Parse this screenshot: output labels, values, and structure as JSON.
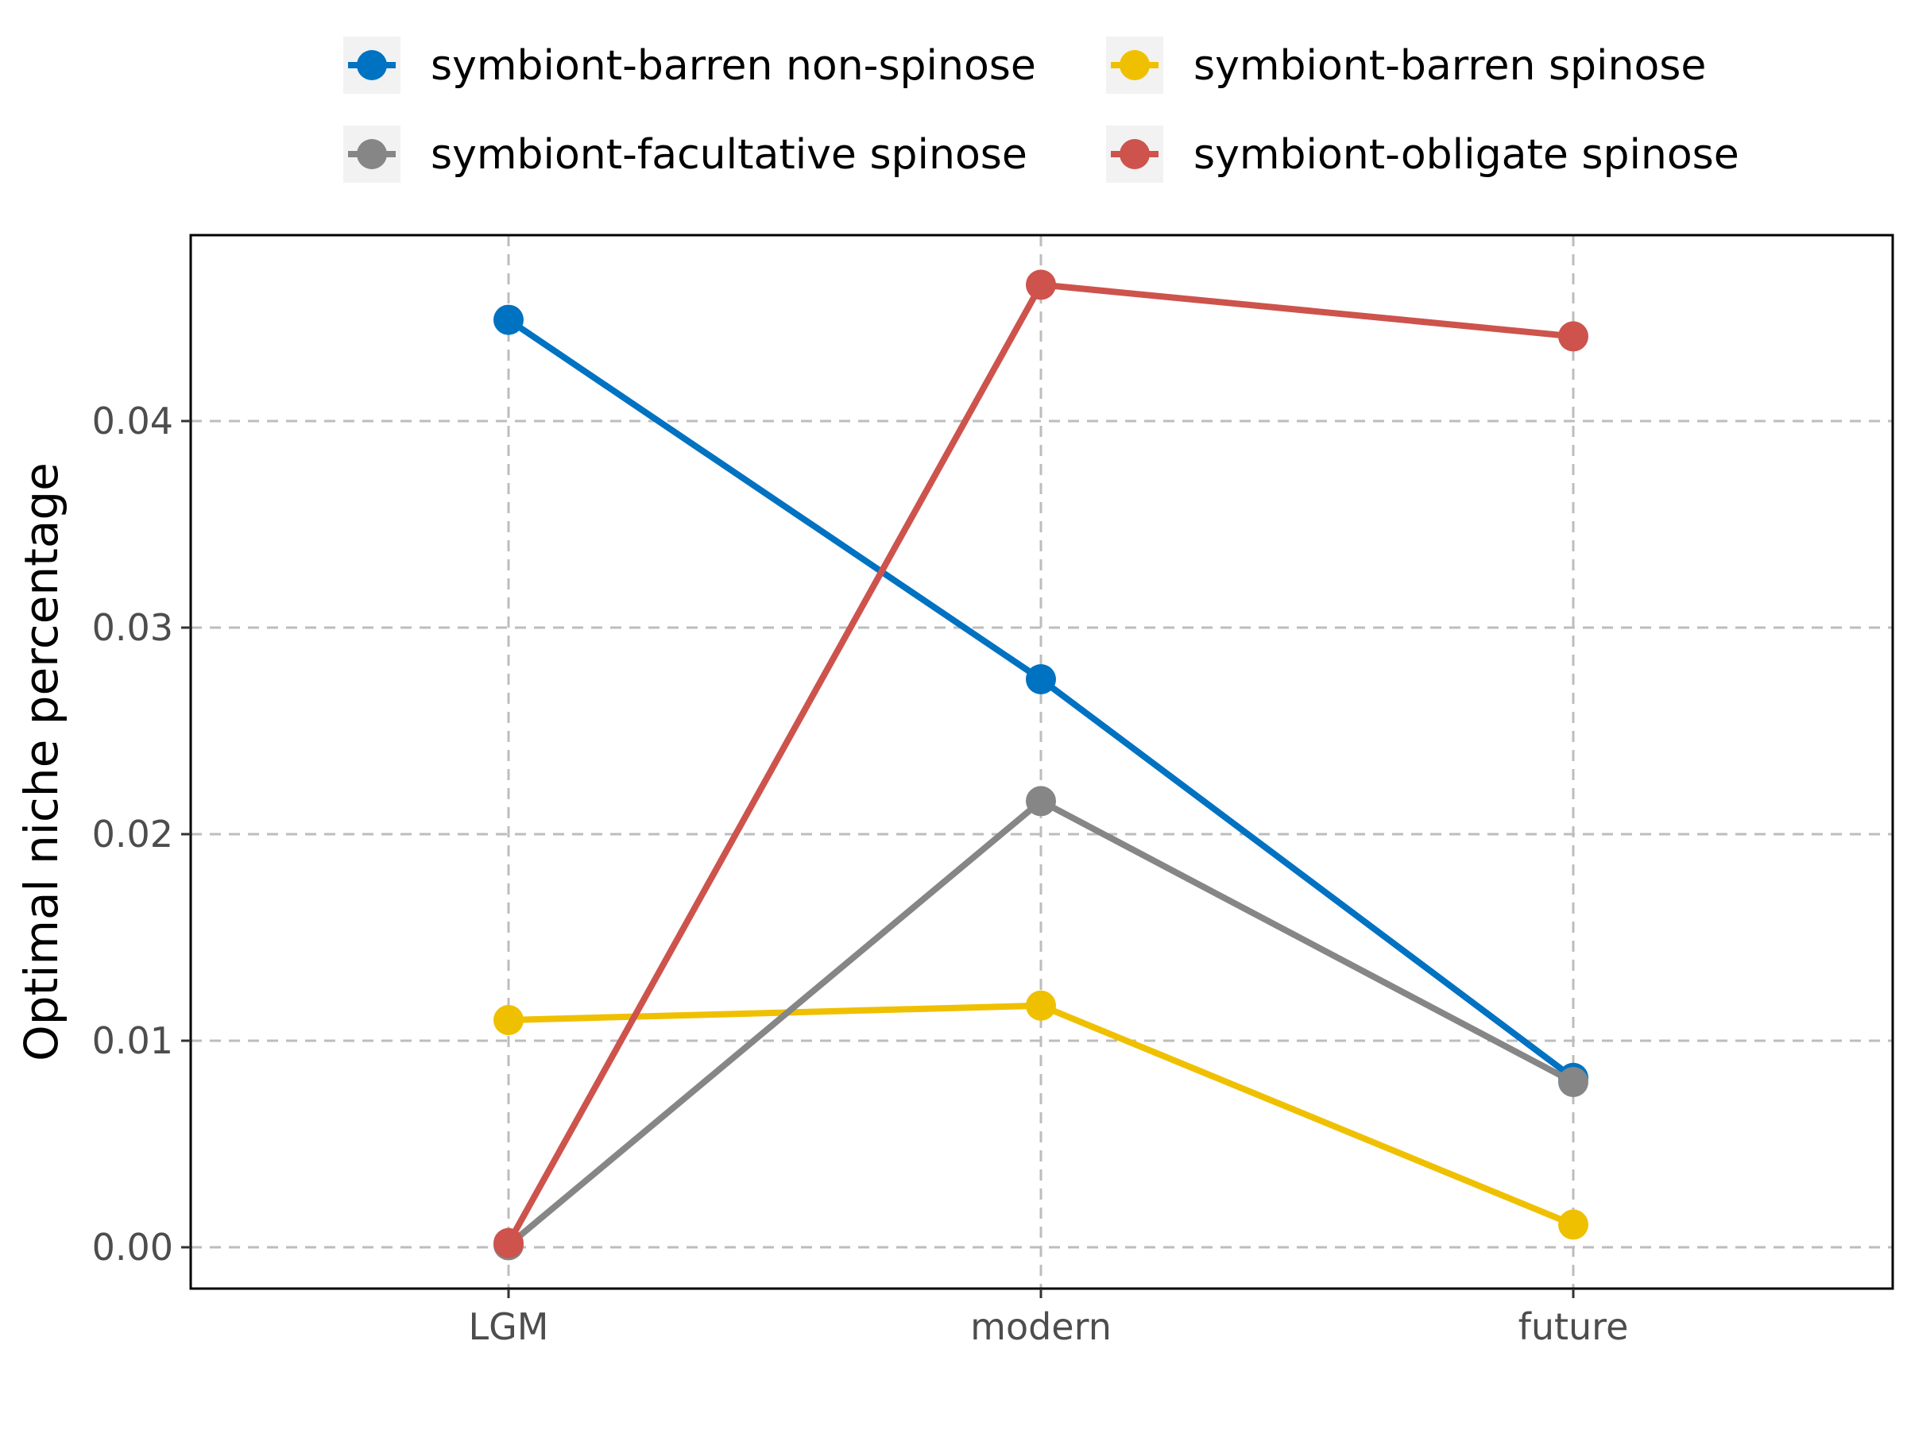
{
  "chart_data": {
    "type": "line",
    "categories": [
      "LGM",
      "modern",
      "future"
    ],
    "ylabel": "Optimal niche percentage",
    "xlabel": "",
    "ylim": [
      -0.002,
      0.049
    ],
    "yticks": [
      0.0,
      0.01,
      0.02,
      0.03,
      0.04
    ],
    "ytick_labels": [
      "0.00",
      "0.01",
      "0.02",
      "0.03",
      "0.04"
    ],
    "grid": true,
    "legend_position": "top",
    "series": [
      {
        "name": "symbiont-barren non-spinose",
        "color": "#0072C2",
        "values": [
          0.0449,
          0.0275,
          0.0082
        ]
      },
      {
        "name": "symbiont-barren spinose",
        "color": "#EFC000",
        "values": [
          0.011,
          0.0117,
          0.0011
        ]
      },
      {
        "name": "symbiont-facultative spinose",
        "color": "#868686",
        "values": [
          0.0001,
          0.0216,
          0.008
        ]
      },
      {
        "name": "symbiont-obligate spinose",
        "color": "#CD534C",
        "values": [
          0.0002,
          0.0466,
          0.0441
        ]
      }
    ]
  }
}
